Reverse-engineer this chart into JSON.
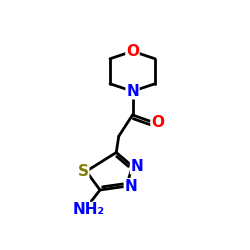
{
  "bg_color": "#ffffff",
  "atom_colors": {
    "N": "#0000ff",
    "O": "#ff0000",
    "S": "#808000",
    "C": "#000000"
  },
  "bond_color": "#000000",
  "bond_width": 2.0,
  "figsize": [
    2.5,
    2.5
  ],
  "dpi": 100,
  "xlim": [
    0,
    10
  ],
  "ylim": [
    0,
    10
  ]
}
